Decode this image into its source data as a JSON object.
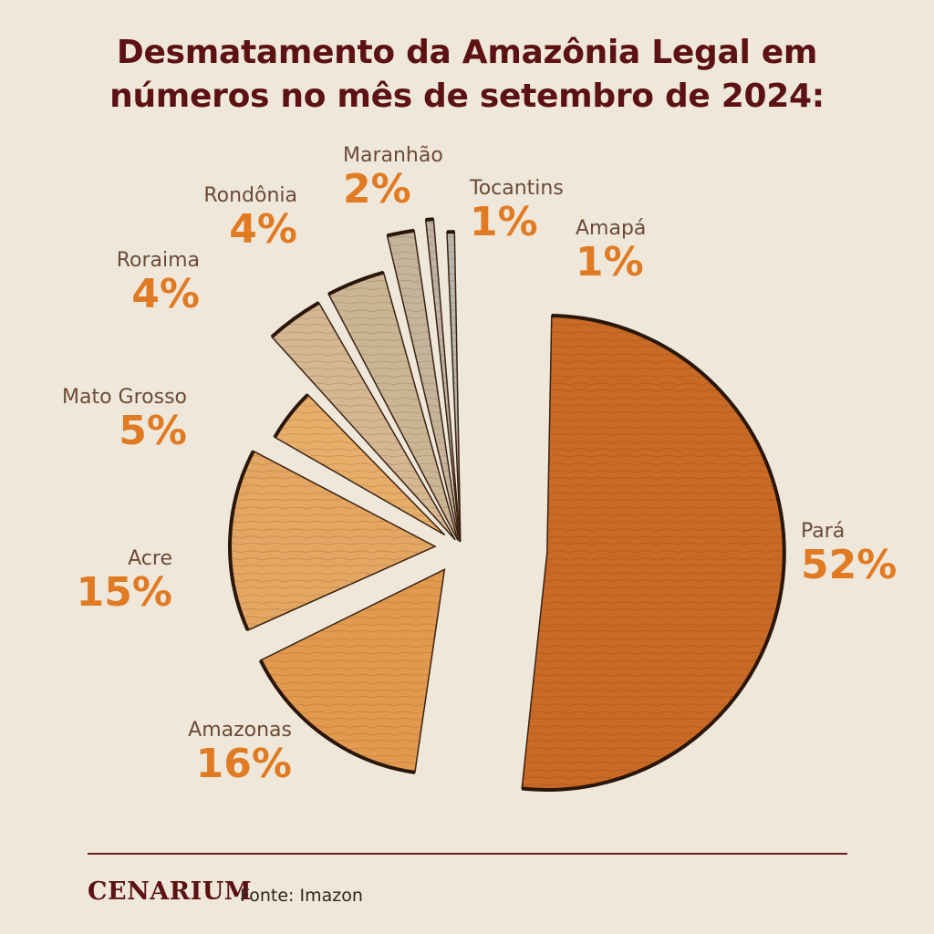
{
  "title_lines": [
    "Desmatamento da Amazônia Legal em",
    "números no mês de setembro de 2024:"
  ],
  "chart_data": {
    "type": "pie",
    "title": "Desmatamento da Amazônia Legal em números no mês de setembro de 2024:",
    "categories": [
      "Pará",
      "Amazonas",
      "Acre",
      "Mato Grosso",
      "Roraima",
      "Rondônia",
      "Maranhão",
      "Tocantins",
      "Amapá"
    ],
    "values": [
      52,
      16,
      15,
      5,
      4,
      4,
      2,
      1,
      1
    ],
    "value_labels": [
      "52%",
      "16%",
      "15%",
      "5%",
      "4%",
      "4%",
      "2%",
      "1%",
      "1%"
    ],
    "colors": [
      "#c96a26",
      "#e39a4f",
      "#e4a663",
      "#e7ae6a",
      "#d5b793",
      "#ccb595",
      "#c5b49c",
      "#beb3a4",
      "#bab6ae"
    ]
  },
  "footer": {
    "brand": "CENARIUM",
    "source": "Fonte: Imazon"
  }
}
